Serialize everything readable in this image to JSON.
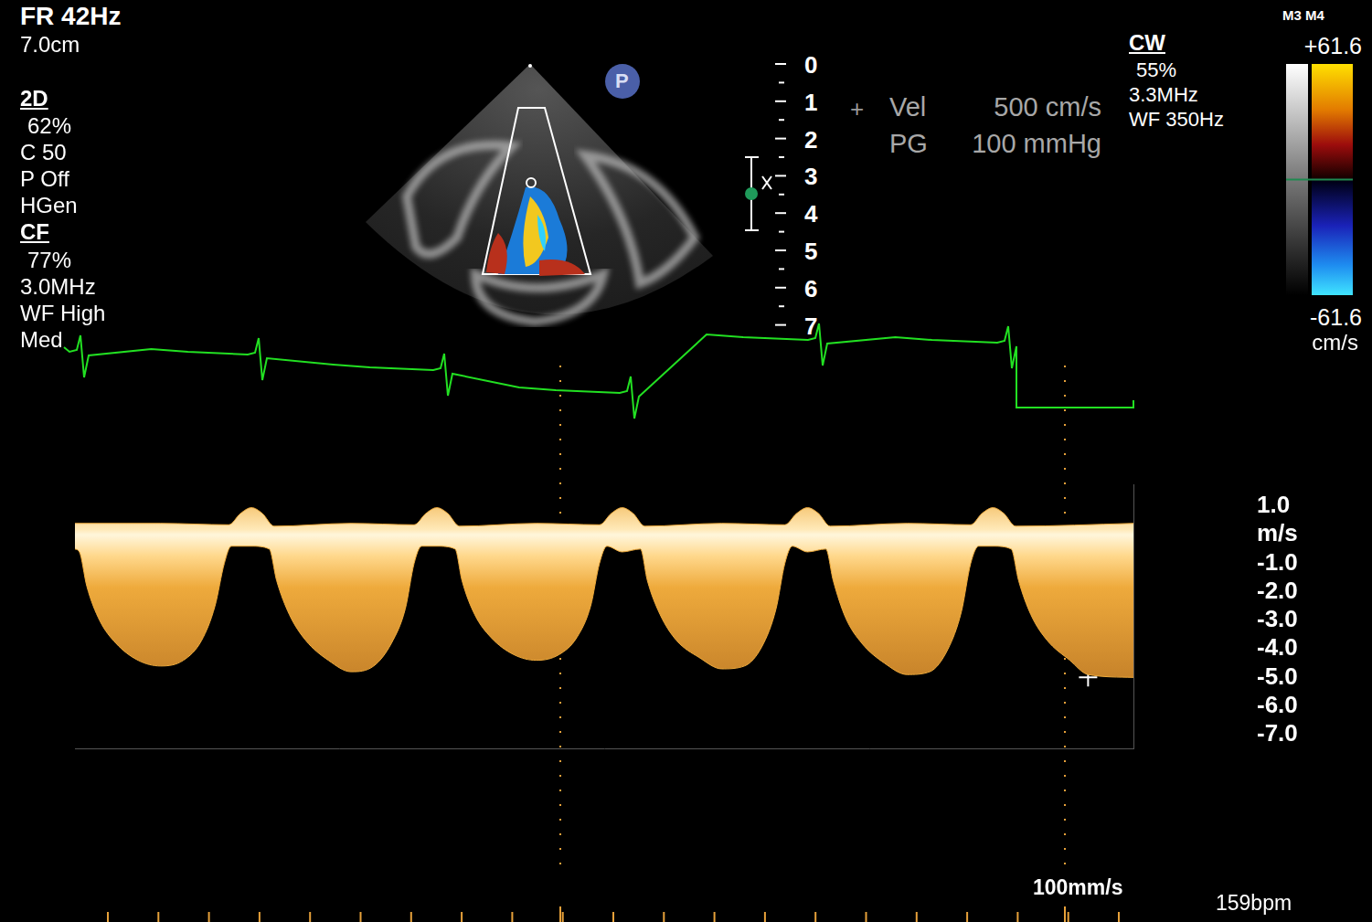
{
  "header": {
    "frame_rate": "FR 42Hz",
    "depth": "7.0cm"
  },
  "mode_2d": {
    "title": "2D",
    "lines": [
      "62%",
      "C 50",
      "P Off",
      "HGen"
    ]
  },
  "mode_cf": {
    "title": "CF",
    "lines": [
      "77%",
      "3.0MHz",
      "WF High",
      "Med"
    ]
  },
  "inset_marker": "P",
  "depth_scale": {
    "ticks": [
      0,
      1,
      2,
      3,
      4,
      5,
      6,
      7
    ]
  },
  "measurement": {
    "rows": [
      [
        "Vel",
        "500 cm/s"
      ],
      [
        "PG",
        "100 mmHg"
      ]
    ]
  },
  "mode_cw": {
    "title": "CW",
    "lines": [
      "55%",
      "3.3MHz",
      "WF 350Hz"
    ]
  },
  "color_bar": {
    "title": "M3 M4",
    "range": [
      -61.6,
      61.6
    ],
    "ticks": [
      {
        "value": 61.6,
        "label": "+61.6"
      },
      {
        "value": -61.6,
        "label": "-61.6"
      }
    ],
    "unit": "cm/s"
  },
  "chart_data": {
    "type": "line",
    "color": "#eeaa3c",
    "tick_labels": "y",
    "xlim": [
      0,
      2.147
    ],
    "ylim": [
      -7.5,
      1.75
    ],
    "yticks": [
      {
        "value": 1,
        "label": "1.0"
      },
      {
        "value": 0,
        "label": "m/s"
      },
      {
        "value": -1,
        "label": "-1.0"
      },
      {
        "value": -2,
        "label": "-2.0"
      },
      {
        "value": -3,
        "label": "-3.0"
      },
      {
        "value": -4,
        "label": "-4.0"
      },
      {
        "value": -5,
        "label": "-5.0"
      },
      {
        "value": -6,
        "label": "-6.0"
      },
      {
        "value": -7,
        "label": "-7.0"
      }
    ],
    "series": [
      {
        "x": [
          0,
          0.009,
          0.024,
          0.05,
          0.083,
          0.128,
          0.174,
          0.22,
          0.257,
          0.284,
          0.303,
          0.317,
          0.358,
          0.394,
          0.409,
          0.435,
          0.468,
          0.514,
          0.56,
          0.606,
          0.642,
          0.67,
          0.688,
          0.703,
          0.734,
          0.771,
          0.785,
          0.811,
          0.844,
          0.89,
          0.936,
          0.982,
          1.018,
          1.046,
          1.064,
          1.079,
          1.11,
          1.147,
          1.161,
          1.187,
          1.22,
          1.266,
          1.312,
          1.358,
          1.394,
          1.422,
          1.44,
          1.455,
          1.486,
          1.523,
          1.538,
          1.563,
          1.596,
          1.642,
          1.688,
          1.734,
          1.771,
          1.798,
          1.817,
          1.833,
          1.862,
          1.899,
          1.914,
          1.939,
          1.972,
          2.018,
          2.055,
          2.147
        ],
        "values": [
          -0.5,
          -0.6,
          -1.8,
          -3.0,
          -3.8,
          -4.4,
          -4.6,
          -4.4,
          -3.7,
          -2.5,
          -1.0,
          -0.4,
          -0.4,
          -0.5,
          -1.6,
          -2.8,
          -3.7,
          -4.4,
          -4.8,
          -4.6,
          -3.8,
          -2.6,
          -1.0,
          -0.4,
          -0.4,
          -0.5,
          -1.6,
          -2.8,
          -3.6,
          -4.2,
          -4.4,
          -4.2,
          -3.6,
          -2.5,
          -1.0,
          -0.4,
          -0.6,
          -0.5,
          -1.6,
          -2.8,
          -3.7,
          -4.3,
          -4.7,
          -4.6,
          -3.9,
          -2.6,
          -1.0,
          -0.4,
          -0.6,
          -0.5,
          -1.6,
          -2.9,
          -3.8,
          -4.5,
          -4.9,
          -4.8,
          -4.0,
          -2.7,
          -1.0,
          -0.4,
          -0.4,
          -0.5,
          -1.6,
          -2.8,
          -3.7,
          -4.4,
          -4.9,
          -5.0
        ]
      },
      {
        "x": [
          0,
          0.174,
          0.312,
          0.336,
          0.358,
          0.38,
          0.404,
          0.56,
          0.688,
          0.712,
          0.734,
          0.756,
          0.78,
          0.936,
          1.064,
          1.088,
          1.11,
          1.132,
          1.156,
          1.312,
          1.44,
          1.464,
          1.486,
          1.508,
          1.532,
          1.688,
          1.817,
          1.84,
          1.862,
          1.884,
          1.908,
          2.147
        ],
        "values": [
          0.4,
          0.4,
          0.35,
          0.75,
          0.95,
          0.75,
          0.3,
          0.4,
          0.35,
          0.75,
          0.95,
          0.75,
          0.3,
          0.4,
          0.35,
          0.75,
          0.95,
          0.75,
          0.3,
          0.4,
          0.35,
          0.75,
          0.95,
          0.75,
          0.3,
          0.4,
          0.35,
          0.75,
          0.95,
          0.75,
          0.3,
          0.4
        ]
      }
    ],
    "measurement_point": {
      "x": 2.055,
      "y": -5.0
    }
  },
  "footer": {
    "sweep_speed": "100mm/s",
    "heart_rate": "159bpm"
  }
}
